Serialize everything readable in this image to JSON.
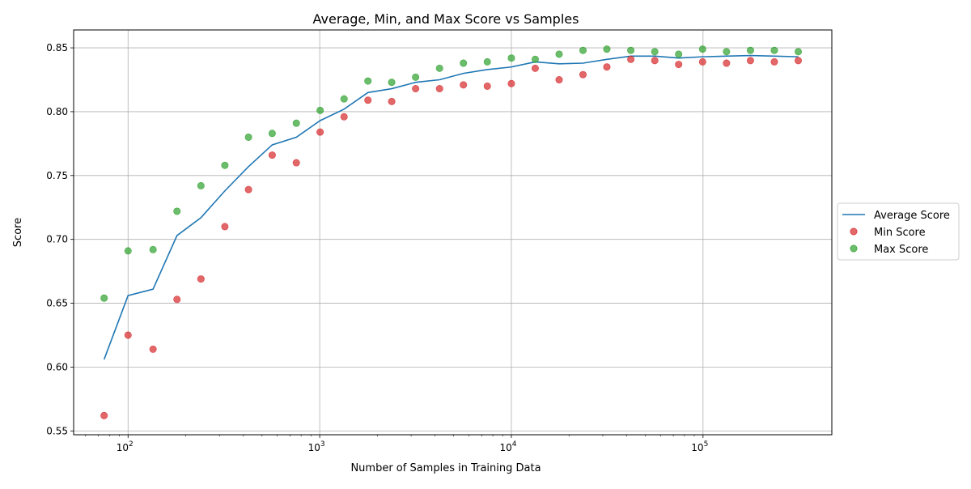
{
  "chart_data": {
    "type": "scatter",
    "title": "Average, Min, and Max Score vs Samples",
    "xlabel": "Number of Samples in Training Data",
    "ylabel": "Score",
    "xscale": "log",
    "xlim": [
      52,
      470000
    ],
    "ylim": [
      0.547,
      0.864
    ],
    "grid": true,
    "legend_position": "center-right outside",
    "x_ticks": [
      {
        "value": 100,
        "base": "10",
        "exp": "2"
      },
      {
        "value": 1000,
        "base": "10",
        "exp": "3"
      },
      {
        "value": 10000,
        "base": "10",
        "exp": "4"
      },
      {
        "value": 100000,
        "base": "10",
        "exp": "5"
      }
    ],
    "y_ticks": [
      0.55,
      0.6,
      0.65,
      0.7,
      0.75,
      0.8,
      0.85
    ],
    "x": [
      75,
      100,
      135,
      180,
      240,
      320,
      425,
      565,
      755,
      1005,
      1340,
      1785,
      2375,
      3165,
      4220,
      5620,
      7490,
      10000,
      13320,
      17750,
      23650,
      31500,
      42000,
      56000,
      74600,
      99500,
      132600,
      176800,
      235600,
      314000
    ],
    "series": [
      {
        "name": "Average Score",
        "kind": "line",
        "color": "#1f77b4",
        "values": [
          0.606,
          0.656,
          0.661,
          0.703,
          0.717,
          0.738,
          0.757,
          0.774,
          0.78,
          0.793,
          0.802,
          0.815,
          0.818,
          0.823,
          0.825,
          0.83,
          0.833,
          0.835,
          0.839,
          0.8375,
          0.838,
          0.841,
          0.8435,
          0.8435,
          0.842,
          0.843,
          0.8435,
          0.844,
          0.8435,
          0.843
        ]
      },
      {
        "name": "Min Score",
        "kind": "scatter",
        "color": "#d62728",
        "values": [
          0.562,
          0.625,
          0.614,
          0.653,
          0.669,
          0.71,
          0.739,
          0.766,
          0.76,
          0.784,
          0.796,
          0.809,
          0.808,
          0.818,
          0.818,
          0.821,
          0.82,
          0.822,
          0.834,
          0.825,
          0.829,
          0.835,
          0.841,
          0.84,
          0.837,
          0.839,
          0.838,
          0.84,
          0.839,
          0.84
        ]
      },
      {
        "name": "Max Score",
        "kind": "scatter",
        "color": "#2ca02c",
        "values": [
          0.654,
          0.691,
          0.692,
          0.722,
          0.742,
          0.758,
          0.78,
          0.783,
          0.791,
          0.801,
          0.81,
          0.824,
          0.823,
          0.827,
          0.834,
          0.838,
          0.839,
          0.842,
          0.841,
          0.845,
          0.848,
          0.849,
          0.848,
          0.847,
          0.845,
          0.849,
          0.847,
          0.848,
          0.848,
          0.847
        ]
      }
    ]
  }
}
